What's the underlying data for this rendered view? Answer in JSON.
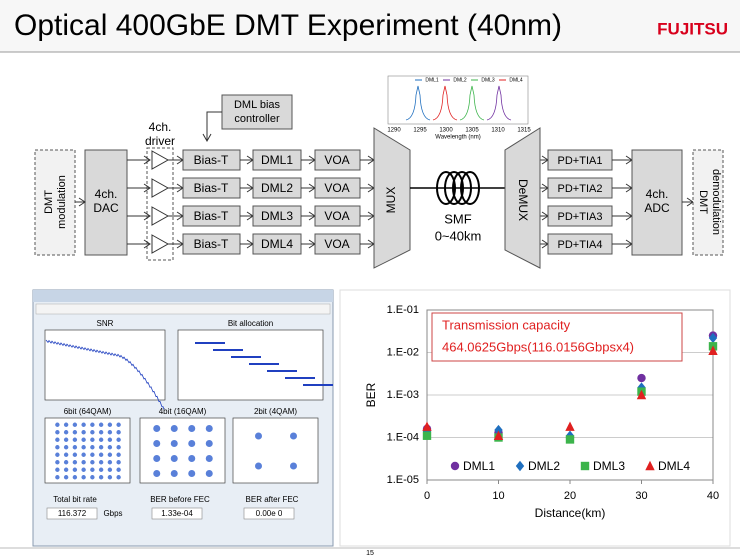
{
  "header": {
    "title": "Optical 400GbE DMT Experiment (40nm)",
    "logo": "FUJITSU"
  },
  "diagram": {
    "modulation": [
      "DMT",
      "modulation"
    ],
    "dac": [
      "4ch.",
      "DAC"
    ],
    "driver": [
      "4ch.",
      "driver"
    ],
    "bias_controller": [
      "DML bias",
      "controller"
    ],
    "bias_t": [
      "Bias-T",
      "Bias-T",
      "Bias-T",
      "Bias-T"
    ],
    "dml": [
      "DML1",
      "DML2",
      "DML3",
      "DML4"
    ],
    "voa": [
      "VOA",
      "VOA",
      "VOA",
      "VOA"
    ],
    "mux": "MUX",
    "fiber": [
      "SMF",
      "0~40km"
    ],
    "demux": "DeMUX",
    "pd": [
      "PD+TIA1",
      "PD+TIA2",
      "PD+TIA3",
      "PD+TIA4"
    ],
    "adc": [
      "4ch.",
      "ADC"
    ],
    "demodulation": [
      "DMT",
      "demodulation"
    ],
    "spectrum": {
      "legend": [
        "DML1",
        "DML2",
        "DML3",
        "DML4"
      ],
      "x_ticks": [
        "1290",
        "1295",
        "1300",
        "1305",
        "1310",
        "1315"
      ],
      "x_label": "Wavelength (nm)"
    }
  },
  "software": {
    "panels": [
      "SNR",
      "Bit allocation",
      "6bit (64QAM)",
      "4bit (16QAM)",
      "2bit (4QAM)"
    ],
    "fields": [
      {
        "label": "Total bit rate",
        "value": "116.372",
        "unit": "Gbps"
      },
      {
        "label": "BER before FEC",
        "value": "1.33e-04"
      },
      {
        "label": "BER after FEC",
        "value": "0.00e 0"
      }
    ]
  },
  "chart_data": {
    "type": "scatter",
    "x_label": "Distance(km)",
    "y_label": "BER",
    "annotation": [
      "Transmission capacity",
      "464.0625Gbps(116.0156Gbpsx4)"
    ],
    "x": [
      0,
      10,
      20,
      30,
      40
    ],
    "xlim": [
      0,
      40
    ],
    "xticks": [
      0,
      10,
      20,
      30,
      40
    ],
    "ylim": [
      1e-05,
      0.1
    ],
    "yticks": [
      {
        "value": 1e-05,
        "label": "1.E-05"
      },
      {
        "value": 0.0001,
        "label": "1.E-04"
      },
      {
        "value": 0.001,
        "label": "1.E-03"
      },
      {
        "value": 0.01,
        "label": "1.E-02"
      },
      {
        "value": 0.1,
        "label": "1.E-01"
      }
    ],
    "log_y": true,
    "grid": true,
    "legend": "bottom",
    "series": [
      {
        "name": "DML1",
        "color": "#7030a0",
        "marker": "circle",
        "values": [
          0.00016,
          0.00013,
          0.0001,
          0.0025,
          0.025
        ]
      },
      {
        "name": "DML2",
        "color": "#1f6fbf",
        "marker": "diamond",
        "values": [
          0.00014,
          0.00015,
          0.00011,
          0.0015,
          0.022
        ]
      },
      {
        "name": "DML3",
        "color": "#3cb44b",
        "marker": "square",
        "values": [
          0.00011,
          0.0001,
          9e-05,
          0.0012,
          0.014
        ]
      },
      {
        "name": "DML4",
        "color": "#e02020",
        "marker": "triangle",
        "values": [
          0.00018,
          0.00011,
          0.00018,
          0.001,
          0.011
        ]
      }
    ]
  },
  "footer": {
    "page": "15"
  }
}
